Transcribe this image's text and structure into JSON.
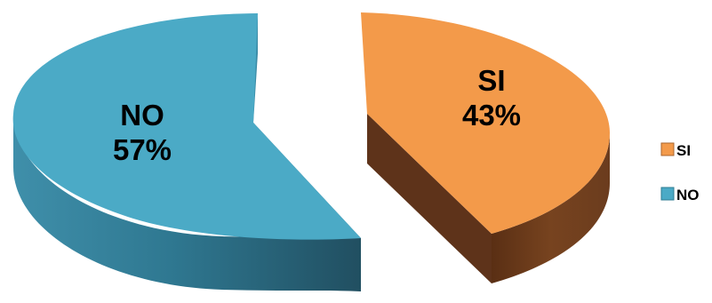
{
  "chart_data": {
    "type": "pie",
    "three_d": true,
    "exploded": true,
    "categories": [
      "SI",
      "NO"
    ],
    "values": [
      43,
      57
    ],
    "data_labels": [
      "43%",
      "57%"
    ],
    "colors": {
      "SI": "#F39A4A",
      "NO": "#4BAAC6",
      "SI_side": "#6B3C1E",
      "NO_side": "#2D6A83"
    },
    "legend": {
      "position": "right",
      "entries": [
        "SI",
        "NO"
      ]
    }
  }
}
